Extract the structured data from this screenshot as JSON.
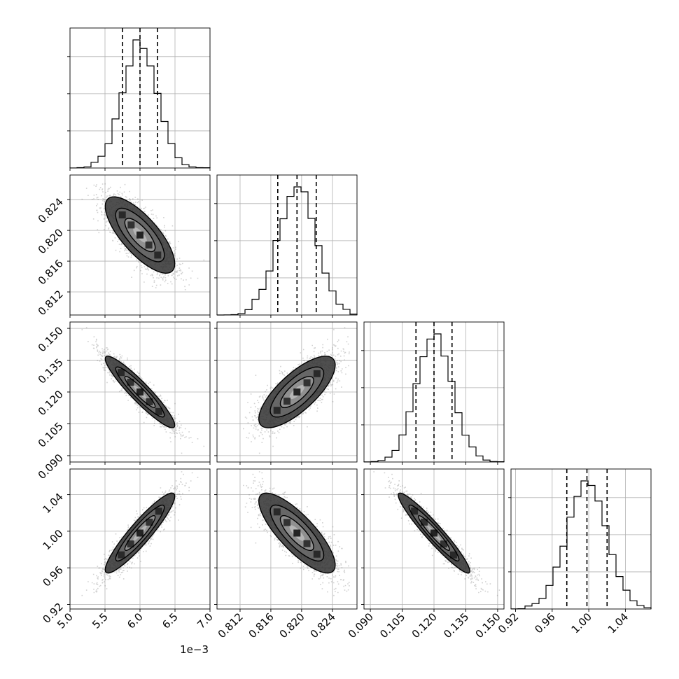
{
  "chart_data": {
    "type": "corner",
    "grid": true,
    "params": [
      {
        "mean": 0.006,
        "sd": 0.00025,
        "quantiles": [
          0.00575,
          0.006,
          0.00625
        ],
        "range": [
          0.005,
          0.007
        ],
        "ticks": [
          0.005,
          0.0055,
          0.006,
          0.0065,
          0.007
        ],
        "tick_labels": [
          "5.0",
          "5.5",
          "6.0",
          "6.5",
          "7.0"
        ],
        "offset_text": "1e−3"
      },
      {
        "mean": 0.8194,
        "sd": 0.0025,
        "quantiles": [
          0.8169,
          0.8194,
          0.8219
        ],
        "range": [
          0.809,
          0.8272
        ],
        "ticks": [
          0.812,
          0.816,
          0.82,
          0.824
        ],
        "tick_labels": [
          "0.812",
          "0.816",
          "0.820",
          "0.824"
        ]
      },
      {
        "mean": 0.12,
        "sd": 0.0085,
        "quantiles": [
          0.1115,
          0.12,
          0.1285
        ],
        "range": [
          0.087,
          0.153
        ],
        "ticks": [
          0.09,
          0.105,
          0.12,
          0.135,
          0.15
        ],
        "tick_labels": [
          "0.090",
          "0.105",
          "0.120",
          "0.135",
          "0.150"
        ]
      },
      {
        "mean": 0.998,
        "sd": 0.022,
        "quantiles": [
          0.976,
          0.998,
          1.02
        ],
        "range": [
          0.915,
          1.068
        ],
        "ticks": [
          0.92,
          0.96,
          1.0,
          1.04
        ],
        "tick_labels": [
          "0.92",
          "0.96",
          "1.00",
          "1.04"
        ]
      }
    ],
    "correlations": [
      [
        1,
        -0.75,
        -0.93,
        0.92
      ],
      [
        -0.75,
        1,
        0.75,
        -0.8
      ],
      [
        -0.93,
        0.75,
        1,
        -0.95
      ],
      [
        0.92,
        -0.8,
        -0.95,
        1
      ]
    ]
  }
}
